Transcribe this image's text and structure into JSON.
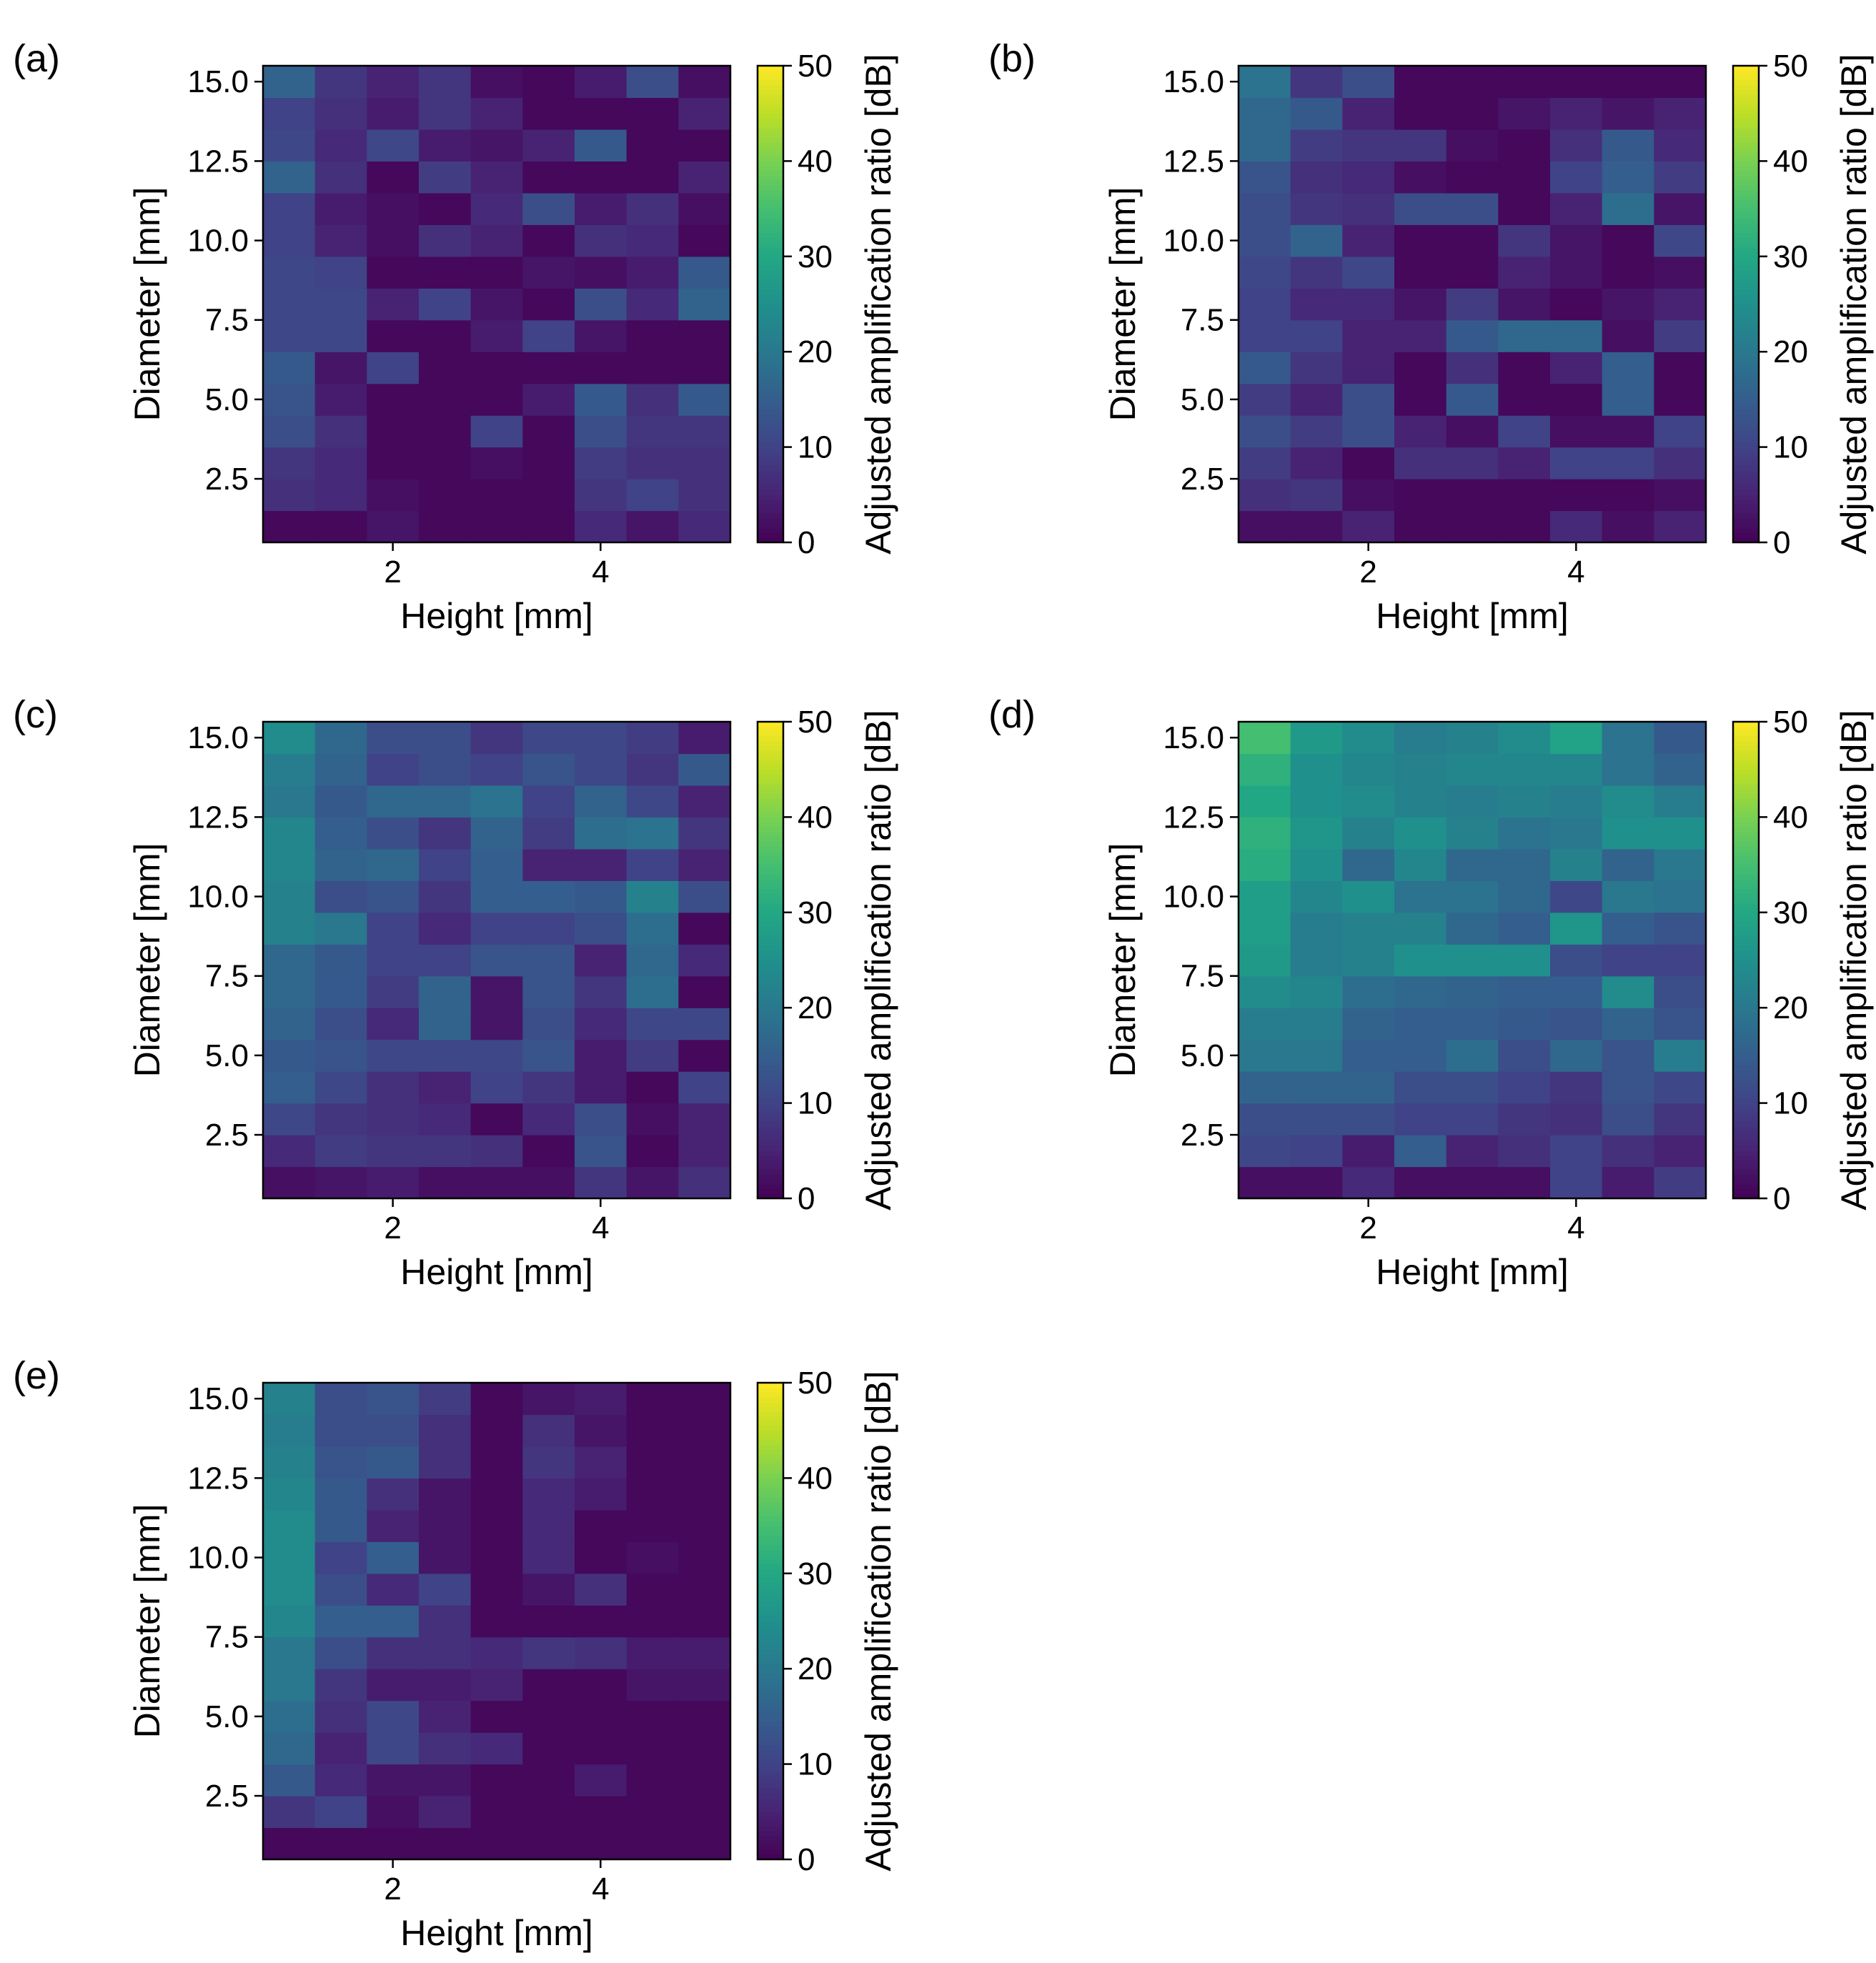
{
  "chart_data": [
    {
      "type": "heatmap",
      "panel_label": "(a)",
      "xlabel": "Height [mm]",
      "ylabel": "Diameter [mm]",
      "colorbar_label": "Adjusted amplification ratio [dB]",
      "colormap": "viridis",
      "vlim": [
        0,
        50
      ],
      "xlim": [
        0.75,
        5.25
      ],
      "ylim": [
        0.5,
        15.5
      ],
      "x_ticks": [
        2,
        4
      ],
      "x_tick_labels": [
        "2",
        "4"
      ],
      "y_ticks": [
        2.5,
        5.0,
        7.5,
        10.0,
        12.5,
        15.0
      ],
      "y_tick_labels": [
        "2.5",
        "5.0",
        "7.5",
        "10.0",
        "12.5",
        "15.0"
      ],
      "colorbar_ticks": [
        0,
        10,
        20,
        30,
        40,
        50
      ],
      "colorbar_tick_labels": [
        "0",
        "10",
        "20",
        "30",
        "40",
        "50"
      ],
      "x": [
        1.0,
        1.5,
        2.0,
        2.5,
        3.0,
        3.5,
        4.0,
        4.5,
        5.0
      ],
      "y": [
        1,
        2,
        3,
        4,
        5,
        6,
        7,
        8,
        9,
        10,
        11,
        12,
        13,
        14,
        15
      ],
      "z": [
        [
          1,
          1,
          3,
          1,
          1,
          1,
          6,
          3,
          6
        ],
        [
          7,
          6,
          2,
          1,
          1,
          1,
          8,
          10,
          7
        ],
        [
          8,
          6,
          1,
          1,
          2,
          1,
          9,
          7,
          7
        ],
        [
          12,
          7,
          1,
          1,
          10,
          1,
          12,
          8,
          8
        ],
        [
          13,
          4,
          1,
          1,
          1,
          4,
          14,
          7,
          14
        ],
        [
          14,
          3,
          10,
          1,
          1,
          1,
          1,
          1,
          1
        ],
        [
          11,
          11,
          1,
          1,
          4,
          10,
          3,
          1,
          1
        ],
        [
          11,
          11,
          5,
          10,
          3,
          1,
          12,
          6,
          16
        ],
        [
          11,
          10,
          1,
          1,
          1,
          3,
          2,
          4,
          14
        ],
        [
          10,
          5,
          2,
          7,
          5,
          1,
          7,
          6,
          1
        ],
        [
          10,
          4,
          2,
          1,
          6,
          12,
          4,
          7,
          2
        ],
        [
          16,
          7,
          1,
          9,
          5,
          1,
          1,
          1,
          5
        ],
        [
          11,
          6,
          11,
          4,
          3,
          5,
          14,
          1,
          1
        ],
        [
          10,
          7,
          4,
          8,
          5,
          1,
          1,
          1,
          5
        ],
        [
          16,
          8,
          5,
          8,
          2,
          1,
          4,
          12,
          2
        ]
      ]
    },
    {
      "type": "heatmap",
      "panel_label": "(b)",
      "xlabel": "Height [mm]",
      "ylabel": "Diameter [mm]",
      "colorbar_label": "Adjusted amplification ratio [dB]",
      "colormap": "viridis",
      "vlim": [
        0,
        50
      ],
      "xlim": [
        0.75,
        5.25
      ],
      "ylim": [
        0.5,
        15.5
      ],
      "x_ticks": [
        2,
        4
      ],
      "x_tick_labels": [
        "2",
        "4"
      ],
      "y_ticks": [
        2.5,
        5.0,
        7.5,
        10.0,
        12.5,
        15.0
      ],
      "y_tick_labels": [
        "2.5",
        "5.0",
        "7.5",
        "10.0",
        "12.5",
        "15.0"
      ],
      "colorbar_ticks": [
        0,
        10,
        20,
        30,
        40,
        50
      ],
      "colorbar_tick_labels": [
        "0",
        "10",
        "20",
        "30",
        "40",
        "50"
      ],
      "x": [
        1.0,
        1.5,
        2.0,
        2.5,
        3.0,
        3.5,
        4.0,
        4.5,
        5.0
      ],
      "y": [
        1,
        2,
        3,
        4,
        5,
        6,
        7,
        8,
        9,
        10,
        11,
        12,
        13,
        14,
        15
      ],
      "z": [
        [
          2,
          2,
          5,
          1,
          1,
          1,
          6,
          2,
          5
        ],
        [
          7,
          8,
          2,
          1,
          1,
          1,
          1,
          1,
          2
        ],
        [
          9,
          5,
          1,
          7,
          7,
          5,
          10,
          10,
          7
        ],
        [
          12,
          9,
          12,
          5,
          2,
          10,
          2,
          2,
          10
        ],
        [
          9,
          5,
          12,
          1,
          14,
          1,
          1,
          15,
          1
        ],
        [
          14,
          8,
          5,
          1,
          7,
          1,
          5,
          15,
          1
        ],
        [
          10,
          10,
          5,
          5,
          14,
          17,
          17,
          2,
          9
        ],
        [
          10,
          6,
          6,
          3,
          9,
          3,
          1,
          3,
          5
        ],
        [
          11,
          8,
          11,
          1,
          1,
          5,
          3,
          1,
          2
        ],
        [
          12,
          16,
          5,
          1,
          1,
          8,
          3,
          1,
          11
        ],
        [
          12,
          8,
          7,
          12,
          12,
          1,
          5,
          18,
          3
        ],
        [
          13,
          7,
          6,
          2,
          1,
          1,
          10,
          15,
          9
        ],
        [
          17,
          9,
          8,
          8,
          2,
          1,
          7,
          14,
          6
        ],
        [
          17,
          14,
          5,
          1,
          1,
          3,
          5,
          3,
          5
        ],
        [
          19,
          8,
          12,
          1,
          1,
          1,
          1,
          1,
          1
        ]
      ]
    },
    {
      "type": "heatmap",
      "panel_label": "(c)",
      "xlabel": "Height [mm]",
      "ylabel": "Diameter [mm]",
      "colorbar_label": "Adjusted amplification ratio [dB]",
      "colormap": "viridis",
      "vlim": [
        0,
        50
      ],
      "xlim": [
        0.75,
        5.25
      ],
      "ylim": [
        0.5,
        15.5
      ],
      "x_ticks": [
        2,
        4
      ],
      "x_tick_labels": [
        "2",
        "4"
      ],
      "y_ticks": [
        2.5,
        5.0,
        7.5,
        10.0,
        12.5,
        15.0
      ],
      "y_tick_labels": [
        "2.5",
        "5.0",
        "7.5",
        "10.0",
        "12.5",
        "15.0"
      ],
      "colorbar_ticks": [
        0,
        10,
        20,
        30,
        40,
        50
      ],
      "colorbar_tick_labels": [
        "0",
        "10",
        "20",
        "30",
        "40",
        "50"
      ],
      "x": [
        1.0,
        1.5,
        2.0,
        2.5,
        3.0,
        3.5,
        4.0,
        4.5,
        5.0
      ],
      "y": [
        1,
        2,
        3,
        4,
        5,
        6,
        7,
        8,
        9,
        10,
        11,
        12,
        13,
        14,
        15
      ],
      "z": [
        [
          2,
          3,
          4,
          2,
          2,
          2,
          8,
          3,
          7
        ],
        [
          6,
          9,
          8,
          8,
          7,
          1,
          13,
          1,
          5
        ],
        [
          11,
          8,
          7,
          6,
          1,
          6,
          12,
          2,
          5
        ],
        [
          15,
          11,
          7,
          5,
          10,
          8,
          4,
          1,
          10
        ],
        [
          14,
          13,
          11,
          11,
          11,
          13,
          4,
          9,
          1
        ],
        [
          16,
          12,
          6,
          16,
          3,
          12,
          6,
          11,
          11
        ],
        [
          17,
          14,
          9,
          16,
          3,
          13,
          8,
          18,
          1
        ],
        [
          17,
          14,
          10,
          10,
          13,
          13,
          5,
          17,
          6
        ],
        [
          22,
          20,
          10,
          6,
          10,
          10,
          12,
          18,
          1
        ],
        [
          22,
          12,
          13,
          8,
          15,
          15,
          14,
          22,
          12
        ],
        [
          23,
          16,
          17,
          10,
          15,
          5,
          5,
          10,
          5
        ],
        [
          23,
          15,
          12,
          8,
          16,
          9,
          18,
          19,
          8
        ],
        [
          20,
          14,
          17,
          17,
          19,
          10,
          16,
          11,
          5
        ],
        [
          21,
          16,
          10,
          12,
          10,
          13,
          11,
          8,
          14
        ],
        [
          24,
          17,
          12,
          12,
          8,
          11,
          11,
          9,
          4
        ]
      ]
    },
    {
      "type": "heatmap",
      "panel_label": "(d)",
      "xlabel": "Height [mm]",
      "ylabel": "Diameter [mm]",
      "colorbar_label": "Adjusted amplification ratio [dB]",
      "colormap": "viridis",
      "vlim": [
        0,
        50
      ],
      "xlim": [
        0.75,
        5.25
      ],
      "ylim": [
        0.5,
        15.5
      ],
      "x_ticks": [
        2,
        4
      ],
      "x_tick_labels": [
        "2",
        "4"
      ],
      "y_ticks": [
        2.5,
        5.0,
        7.5,
        10.0,
        12.5,
        15.0
      ],
      "y_tick_labels": [
        "2.5",
        "5.0",
        "7.5",
        "10.0",
        "12.5",
        "15.0"
      ],
      "colorbar_ticks": [
        0,
        10,
        20,
        30,
        40,
        50
      ],
      "colorbar_tick_labels": [
        "0",
        "10",
        "20",
        "30",
        "40",
        "50"
      ],
      "x": [
        1.0,
        1.5,
        2.0,
        2.5,
        3.0,
        3.5,
        4.0,
        4.5,
        5.0
      ],
      "y": [
        1,
        2,
        3,
        4,
        5,
        6,
        7,
        8,
        9,
        10,
        11,
        12,
        13,
        14,
        15
      ],
      "z": [
        [
          2,
          2,
          6,
          2,
          2,
          2,
          10,
          4,
          9
        ],
        [
          11,
          10,
          4,
          15,
          5,
          7,
          10,
          7,
          5
        ],
        [
          12,
          12,
          12,
          10,
          10,
          8,
          7,
          12,
          8
        ],
        [
          16,
          16,
          16,
          12,
          12,
          10,
          8,
          13,
          11
        ],
        [
          20,
          20,
          15,
          15,
          18,
          12,
          17,
          13,
          21
        ],
        [
          21,
          21,
          16,
          15,
          15,
          14,
          13,
          16,
          13
        ],
        [
          24,
          23,
          18,
          17,
          16,
          15,
          15,
          24,
          12
        ],
        [
          27,
          21,
          22,
          25,
          25,
          25,
          12,
          10,
          10
        ],
        [
          28,
          21,
          22,
          22,
          17,
          15,
          26,
          15,
          13
        ],
        [
          28,
          23,
          25,
          19,
          19,
          17,
          11,
          20,
          19
        ],
        [
          31,
          25,
          17,
          23,
          17,
          17,
          22,
          16,
          20
        ],
        [
          32,
          26,
          22,
          25,
          22,
          19,
          20,
          25,
          25
        ],
        [
          30,
          25,
          24,
          22,
          21,
          22,
          21,
          24,
          21
        ],
        [
          32,
          25,
          23,
          22,
          23,
          23,
          23,
          19,
          16
        ],
        [
          35,
          27,
          24,
          21,
          22,
          24,
          29,
          19,
          14
        ]
      ]
    },
    {
      "type": "heatmap",
      "panel_label": "(e)",
      "xlabel": "Height [mm]",
      "ylabel": "Diameter [mm]",
      "colorbar_label": "Adjusted amplification ratio [dB]",
      "colormap": "viridis",
      "vlim": [
        0,
        50
      ],
      "xlim": [
        0.75,
        5.25
      ],
      "ylim": [
        0.5,
        15.5
      ],
      "x_ticks": [
        2,
        4
      ],
      "x_tick_labels": [
        "2",
        "4"
      ],
      "y_ticks": [
        2.5,
        5.0,
        7.5,
        10.0,
        12.5,
        15.0
      ],
      "y_tick_labels": [
        "2.5",
        "5.0",
        "7.5",
        "10.0",
        "12.5",
        "15.0"
      ],
      "colorbar_ticks": [
        0,
        10,
        20,
        30,
        40,
        50
      ],
      "colorbar_tick_labels": [
        "0",
        "10",
        "20",
        "30",
        "40",
        "50"
      ],
      "x": [
        1.0,
        1.5,
        2.0,
        2.5,
        3.0,
        3.5,
        4.0,
        4.5,
        5.0
      ],
      "y": [
        1,
        2,
        3,
        4,
        5,
        6,
        7,
        8,
        9,
        10,
        11,
        12,
        13,
        14,
        15
      ],
      "z": [
        [
          1,
          1,
          1,
          1,
          1,
          1,
          1,
          1,
          1
        ],
        [
          8,
          10,
          2,
          5,
          1,
          1,
          1,
          1,
          1
        ],
        [
          14,
          6,
          3,
          3,
          1,
          1,
          4,
          1,
          1
        ],
        [
          17,
          5,
          11,
          7,
          6,
          1,
          1,
          1,
          1
        ],
        [
          18,
          7,
          11,
          5,
          1,
          1,
          1,
          1,
          1
        ],
        [
          20,
          8,
          4,
          4,
          5,
          1,
          1,
          3,
          3
        ],
        [
          20,
          12,
          7,
          7,
          6,
          8,
          7,
          4,
          4
        ],
        [
          23,
          15,
          15,
          7,
          1,
          1,
          1,
          1,
          1
        ],
        [
          24,
          12,
          6,
          10,
          1,
          3,
          7,
          1,
          1
        ],
        [
          24,
          10,
          15,
          3,
          1,
          6,
          1,
          2,
          1
        ],
        [
          24,
          14,
          5,
          3,
          1,
          6,
          1,
          1,
          1
        ],
        [
          23,
          14,
          7,
          3,
          1,
          6,
          4,
          1,
          1
        ],
        [
          22,
          13,
          14,
          7,
          1,
          8,
          5,
          1,
          1
        ],
        [
          21,
          12,
          12,
          7,
          1,
          7,
          3,
          1,
          1
        ],
        [
          22,
          12,
          13,
          9,
          1,
          3,
          4,
          1,
          1
        ]
      ]
    }
  ]
}
